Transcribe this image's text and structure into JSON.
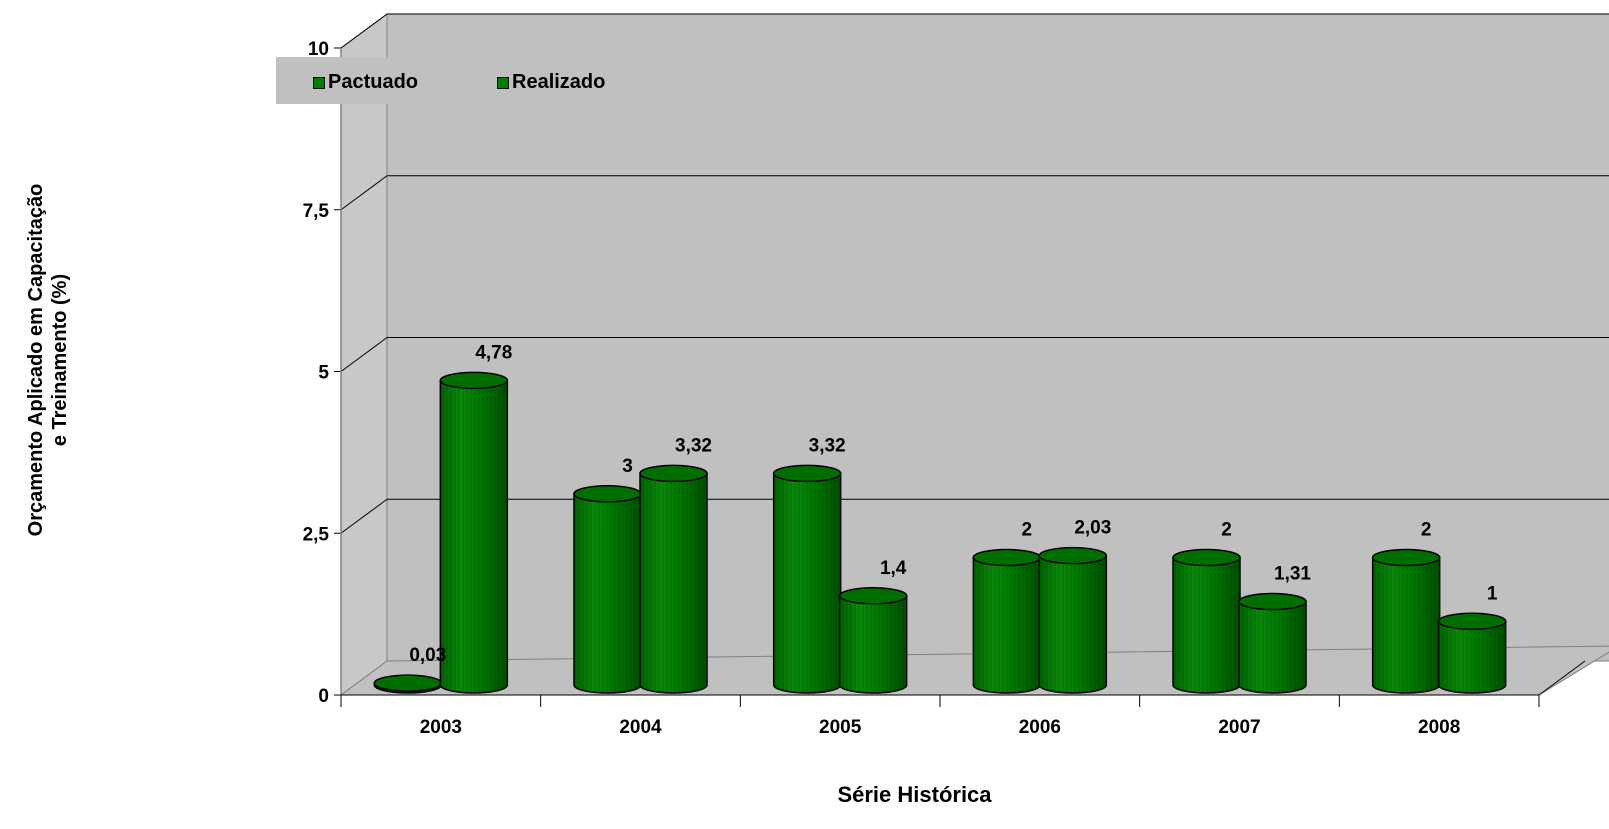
{
  "chart_data": {
    "type": "bar",
    "style": "3d-cylinder",
    "categories": [
      "2003",
      "2004",
      "2005",
      "2006",
      "2007",
      "2008"
    ],
    "series": [
      {
        "name": "Pactuado",
        "values": [
          0.03,
          3,
          3.32,
          2,
          2,
          2
        ]
      },
      {
        "name": "Realizado",
        "values": [
          4.78,
          3.32,
          1.4,
          2.03,
          1.31,
          1
        ]
      }
    ],
    "data_labels": [
      [
        "0,03",
        "3",
        "3,32",
        "2",
        "2",
        "2"
      ],
      [
        "4,78",
        "3,32",
        "1,4",
        "2,03",
        "1,31",
        "1"
      ]
    ],
    "ylim": [
      0,
      10
    ],
    "yticks": [
      0,
      2.5,
      5,
      7.5,
      10
    ],
    "ytick_labels": [
      "0",
      "2,5",
      "5",
      "7,5",
      "10"
    ],
    "ylabel_lines": [
      "Orçamento Aplicado em Capacitação",
      "e Treinamento (%)"
    ],
    "xlabel": "Série Histórica",
    "legend_position": "top",
    "grid": true,
    "colors": {
      "bar": "#008000",
      "bar_dark": "#005a00",
      "wall": "#c0c0c0",
      "floor": "#c0c0c0"
    }
  }
}
